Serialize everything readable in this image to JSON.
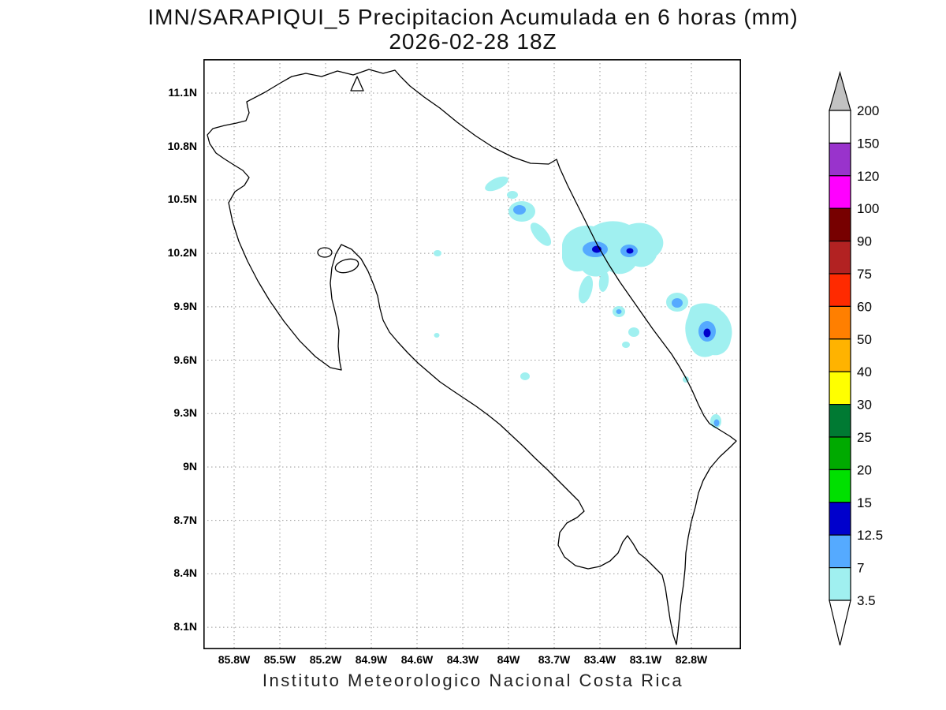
{
  "title": {
    "line1": "IMN/SARAPIQUI_5 Precipitacion Acumulada en 6 horas (mm)",
    "line2": "2026-02-28 18Z"
  },
  "footer": {
    "text": "Instituto Meteorologico Nacional Costa Rica"
  },
  "axes": {
    "lat_ticks": [
      "11.1N",
      "10.8N",
      "10.5N",
      "10.2N",
      "9.9N",
      "9.6N",
      "9.3N",
      "9N",
      "8.7N",
      "8.4N",
      "8.1N"
    ],
    "lon_ticks": [
      "85.8W",
      "85.5W",
      "85.2W",
      "84.9W",
      "84.6W",
      "84.3W",
      "84W",
      "83.7W",
      "83.4W",
      "83.1W",
      "82.8W"
    ]
  },
  "colorbar": {
    "unit": "mm",
    "levels_top_to_bottom": [
      "200",
      "150",
      "120",
      "100",
      "90",
      "75",
      "60",
      "50",
      "40",
      "30",
      "25",
      "20",
      "15",
      "12.5",
      "7",
      "3.5"
    ],
    "segment_colors_top_to_bottom": [
      "#FFFFFF",
      "#9933CC",
      "#FF00FF",
      "#770000",
      "#B22222",
      "#FF2A00",
      "#FF7F00",
      "#FFB300",
      "#FFFF00",
      "#007A33",
      "#00AA00",
      "#00E000",
      "#0000CC",
      "#55AAFF",
      "#A0F0F0"
    ],
    "above_max_color": "#C2C2C2",
    "below_min_color": "#FFFFFF"
  },
  "map": {
    "region": "Costa Rica",
    "grid": "0.3 degree dotted lat/lon grid",
    "precip_cells_observed": [
      {
        "near": "10.55N 83.95W",
        "max_band_mm": "3.5-7"
      },
      {
        "near": "10.40N 83.75W",
        "max_band_mm": "7-12.5"
      },
      {
        "near": "10.22N 83.45W",
        "max_band_mm": "12.5-15"
      },
      {
        "near": "10.22N 83.18W",
        "max_band_mm": "12.5-15"
      },
      {
        "near": "9.90N 83.15W",
        "max_band_mm": "7-12.5"
      },
      {
        "near": "9.85N 82.85W",
        "max_band_mm": "12.5-15"
      },
      {
        "near": "9.35N 82.85W",
        "max_band_mm": "7-12.5"
      }
    ]
  }
}
